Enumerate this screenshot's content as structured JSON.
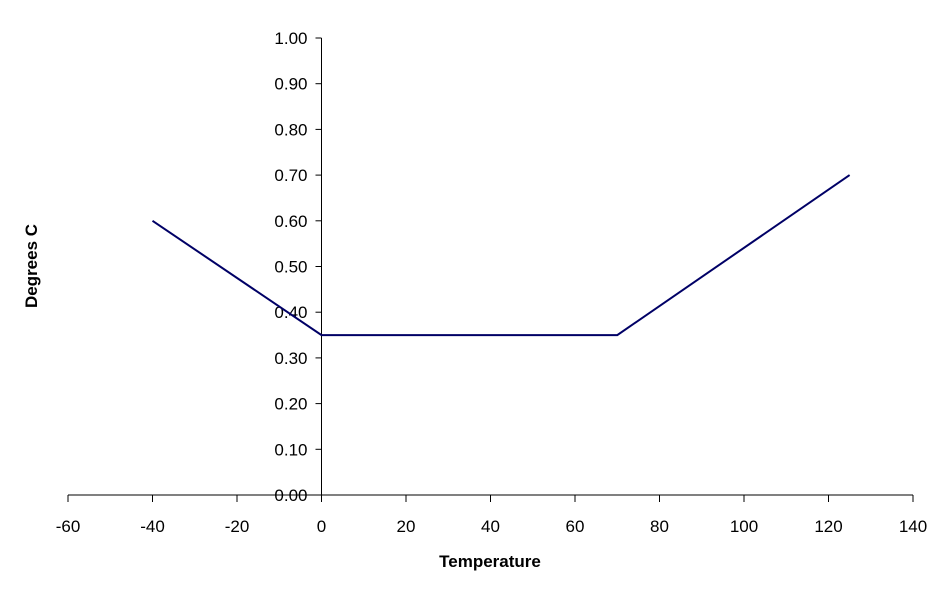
{
  "chart_data": {
    "type": "line",
    "title": "",
    "xlabel": "Temperature",
    "ylabel": "Degrees C",
    "xlim": [
      -60,
      140
    ],
    "ylim": [
      0,
      1
    ],
    "xticks": [
      -60,
      -40,
      -20,
      0,
      20,
      40,
      60,
      80,
      100,
      120,
      140
    ],
    "xtick_labels": [
      "-60",
      "-40",
      "-20",
      "0",
      "20",
      "40",
      "60",
      "80",
      "100",
      "120",
      "140"
    ],
    "yticks": [
      0,
      0.1,
      0.2,
      0.3,
      0.4,
      0.5,
      0.6,
      0.7,
      0.8,
      0.9,
      1.0
    ],
    "ytick_labels": [
      "0.00",
      "0.10",
      "0.20",
      "0.30",
      "0.40",
      "0.50",
      "0.60",
      "0.70",
      "0.80",
      "0.90",
      "1.00"
    ],
    "grid": false,
    "legend": "none",
    "series": [
      {
        "x": [
          -40,
          0,
          70,
          125
        ],
        "y": [
          0.6,
          0.35,
          0.35,
          0.7
        ],
        "color": "#000066"
      }
    ]
  }
}
